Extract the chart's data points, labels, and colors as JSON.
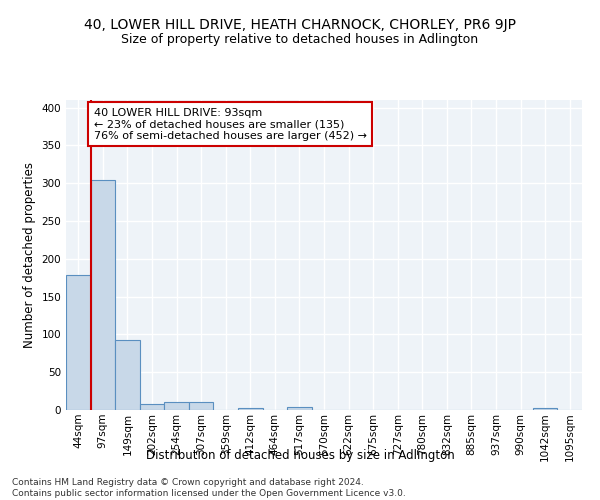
{
  "title": "40, LOWER HILL DRIVE, HEATH CHARNOCK, CHORLEY, PR6 9JP",
  "subtitle": "Size of property relative to detached houses in Adlington",
  "xlabel": "Distribution of detached houses by size in Adlington",
  "ylabel": "Number of detached properties",
  "bin_labels": [
    "44sqm",
    "97sqm",
    "149sqm",
    "202sqm",
    "254sqm",
    "307sqm",
    "359sqm",
    "412sqm",
    "464sqm",
    "517sqm",
    "570sqm",
    "622sqm",
    "675sqm",
    "727sqm",
    "780sqm",
    "832sqm",
    "885sqm",
    "937sqm",
    "990sqm",
    "1042sqm",
    "1095sqm"
  ],
  "bar_heights": [
    178,
    304,
    93,
    8,
    10,
    10,
    0,
    3,
    0,
    4,
    0,
    0,
    0,
    0,
    0,
    0,
    0,
    0,
    0,
    3,
    0
  ],
  "bar_color": "#c8d8e8",
  "bar_edge_color": "#5a8fc0",
  "vline_color": "#cc0000",
  "annotation_line1": "40 LOWER HILL DRIVE: 93sqm",
  "annotation_line2": "← 23% of detached houses are smaller (135)",
  "annotation_line3": "76% of semi-detached houses are larger (452) →",
  "annotation_box_color": "#ffffff",
  "annotation_box_edge_color": "#cc0000",
  "ylim": [
    0,
    410
  ],
  "yticks": [
    0,
    50,
    100,
    150,
    200,
    250,
    300,
    350,
    400
  ],
  "footer_line1": "Contains HM Land Registry data © Crown copyright and database right 2024.",
  "footer_line2": "Contains public sector information licensed under the Open Government Licence v3.0.",
  "bg_color": "#eef3f8",
  "grid_color": "#ffffff",
  "title_fontsize": 10,
  "subtitle_fontsize": 9,
  "axis_label_fontsize": 8.5,
  "tick_fontsize": 7.5,
  "annotation_fontsize": 8,
  "footer_fontsize": 6.5
}
